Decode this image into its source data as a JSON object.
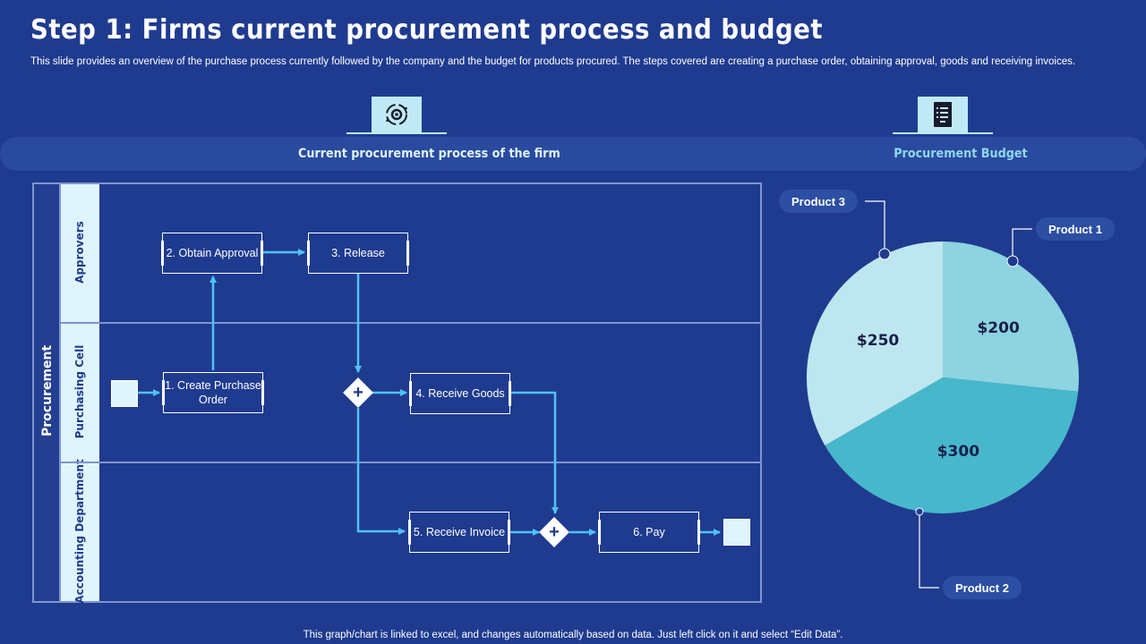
{
  "page": {
    "title": "Step 1: Firms current procurement process and budget",
    "subtitle": "This slide provides an overview of the purchase process currently followed by the company and the budget for products procured. The steps covered are creating a purchase order, obtaining approval, goods and receiving invoices.",
    "footer": "This graph/chart is linked to excel,  and changes automatically based on data. Just left click on it and select “Edit Data”."
  },
  "sections": {
    "process_label": "Current procurement process of the firm",
    "budget_label": "Procurement Budget",
    "process_icon": "gear-cycle-icon",
    "budget_icon": "document-list-icon"
  },
  "diagram": {
    "pool_label": "Procurement",
    "lanes": [
      "Approvers",
      "Purchasing Cell",
      "Accounting Department"
    ],
    "steps": {
      "create_order": "1. Create Purchase Order",
      "obtain_approval": "2. Obtain Approval",
      "release": "3. Release",
      "receive_goods": "4. Receive Goods",
      "receive_invoice": "5. Receive Invoice",
      "pay": "6. Pay"
    },
    "gateway_symbol": "+"
  },
  "chart_data": {
    "type": "pie",
    "series": [
      {
        "name": "Product 1",
        "value": 200,
        "label": "$200",
        "color": "#8dd3e0"
      },
      {
        "name": "Product 2",
        "value": 300,
        "label": "$300",
        "color": "#47b7cc"
      },
      {
        "name": "Product 3",
        "value": 250,
        "label": "$250",
        "color": "#bde6ef"
      }
    ],
    "legend": "callouts"
  },
  "colors": {
    "background": "#1f3b8f",
    "arrow": "#4fc3f7",
    "lane_header": "#dff4fb",
    "accent_text": "#8fd8ee"
  }
}
